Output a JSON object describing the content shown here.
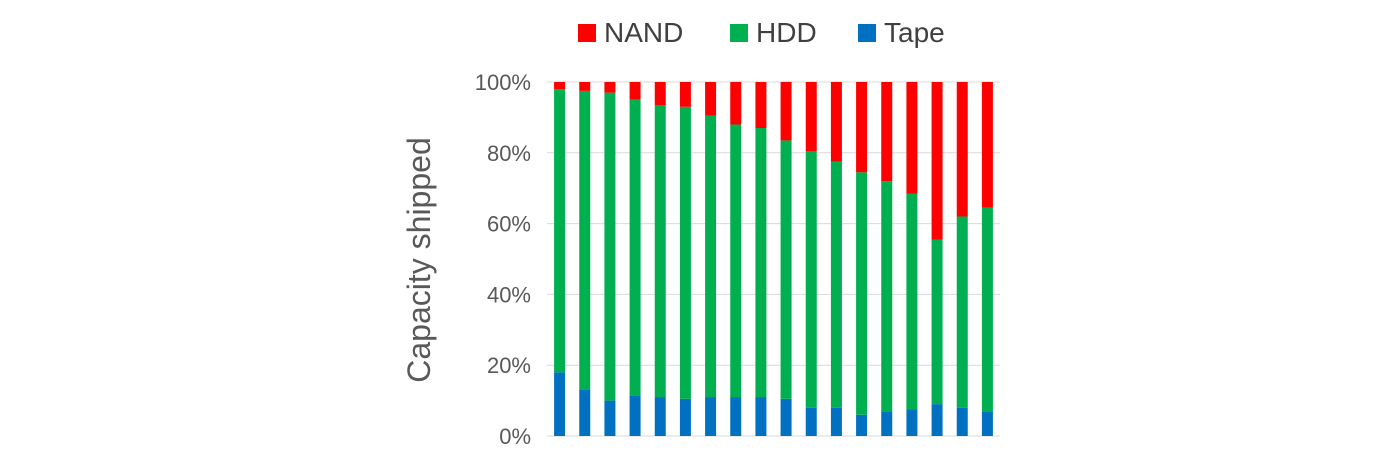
{
  "chart_data": {
    "type": "bar",
    "stacked": true,
    "percent": true,
    "ylabel": "Capacity shipped",
    "ylim": [
      0,
      100
    ],
    "yticks": [
      "0%",
      "20%",
      "40%",
      "60%",
      "80%",
      "100%"
    ],
    "grid": true,
    "legend": "top",
    "series": [
      {
        "name": "Tape",
        "color": "#0070C0",
        "values": [
          18,
          13,
          10,
          11.5,
          11,
          10.5,
          11,
          11,
          11,
          10.5,
          8,
          8,
          6,
          7,
          7.5,
          9,
          8,
          7
        ]
      },
      {
        "name": "HDD",
        "color": "#00B050",
        "values": [
          80,
          84.5,
          87,
          83.5,
          82.5,
          82.5,
          79.5,
          77,
          76,
          73,
          72.5,
          69.5,
          68.5,
          65,
          61,
          46.5,
          54,
          57.5
        ]
      },
      {
        "name": "NAND",
        "color": "#FF0000",
        "values": [
          2,
          2.5,
          3,
          5,
          6.5,
          7,
          9.5,
          12,
          13,
          16.5,
          19.5,
          22.5,
          25.5,
          28,
          31.5,
          44.5,
          38,
          35.5
        ]
      }
    ],
    "legend_order": [
      "NAND",
      "HDD",
      "Tape"
    ]
  }
}
